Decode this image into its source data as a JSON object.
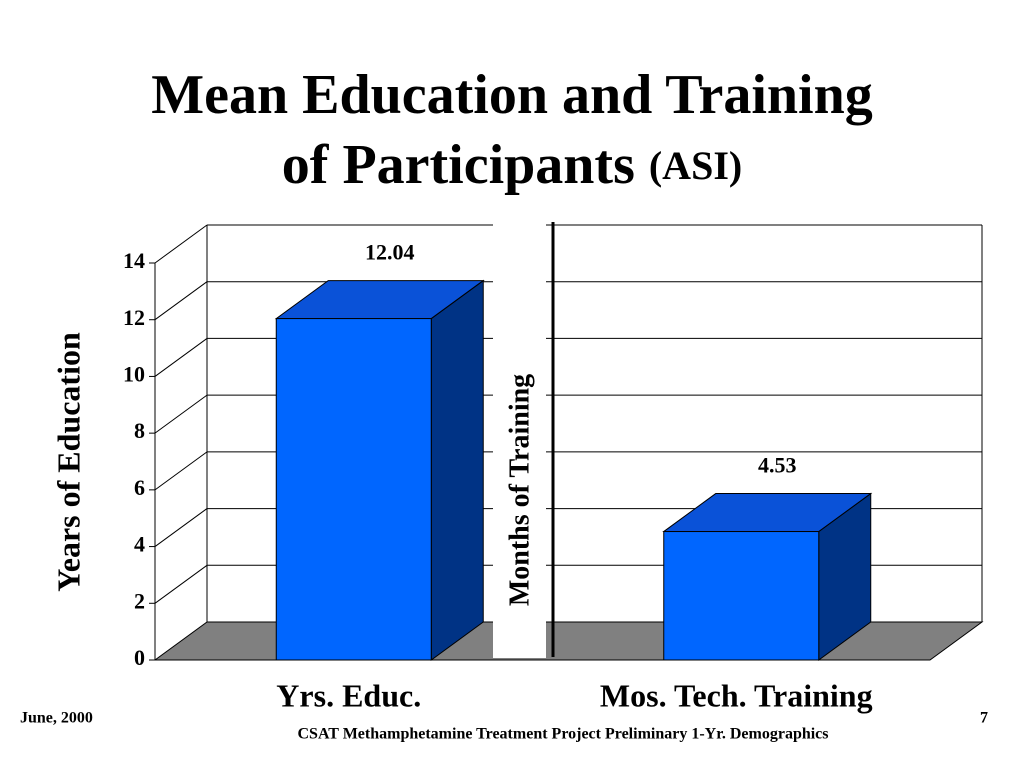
{
  "chart_data": {
    "type": "bar",
    "title": [
      "Mean Education and Training",
      "of Participants"
    ],
    "title_suffix": "(ASI)",
    "categories": [
      "Yrs. Educ.",
      "Mos. Tech. Training"
    ],
    "values": [
      12.04,
      4.53
    ],
    "ylabel": "Years of Education",
    "y2label": "Months of Training",
    "ylim": [
      0,
      14
    ],
    "yticks": [
      0,
      2,
      4,
      6,
      8,
      10,
      12,
      14
    ],
    "grid": true,
    "colors": {
      "front": "#0066ff",
      "top": "#0a52d8",
      "side": "#003385",
      "floor": "#808080"
    }
  },
  "footer": {
    "date": "June, 2000",
    "page": "7",
    "caption": "CSAT Methamphetamine Treatment Project Preliminary 1-Yr. Demographics"
  }
}
